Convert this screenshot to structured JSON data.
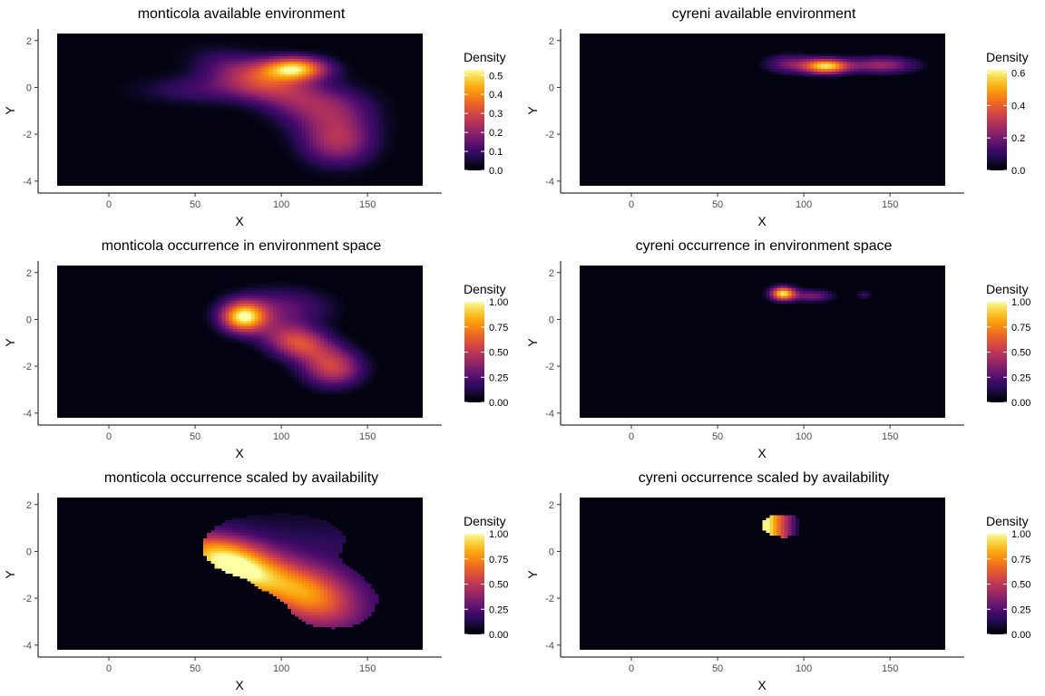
{
  "chart_data": [
    {
      "type": "heatmap",
      "title": "monticola available environment",
      "xlabel": "X",
      "ylabel": "Y",
      "xlim": [
        -30,
        182
      ],
      "ylim": [
        -4.2,
        2.3
      ],
      "xticks": [
        0,
        50,
        100,
        150
      ],
      "yticks": [
        2,
        0,
        -2,
        -4
      ],
      "legend": {
        "title": "Density",
        "ticks": [
          "0.0",
          "0.1",
          "0.2",
          "0.3",
          "0.4",
          "0.5"
        ],
        "max": 0.53,
        "tick_values": [
          0,
          0.1,
          0.2,
          0.3,
          0.4,
          0.5
        ]
      },
      "peak": [
        108,
        0.8
      ],
      "peak_value": 0.53,
      "palette": "inferno"
    },
    {
      "type": "heatmap",
      "title": "cyreni available environment",
      "xlabel": "X",
      "ylabel": "Y",
      "xlim": [
        -30,
        182
      ],
      "ylim": [
        -4.2,
        2.3
      ],
      "xticks": [
        0,
        50,
        100,
        150
      ],
      "yticks": [
        2,
        0,
        -2,
        -4
      ],
      "legend": {
        "title": "Density",
        "ticks": [
          "0.0",
          "0.2",
          "0.4",
          "0.6"
        ],
        "max": 0.62,
        "tick_values": [
          0,
          0.2,
          0.4,
          0.6
        ]
      },
      "peak": [
        113,
        0.9
      ],
      "peak_value": 0.62,
      "palette": "inferno"
    },
    {
      "type": "heatmap",
      "title": "monticola occurrence in environment space",
      "xlabel": "X",
      "ylabel": "Y",
      "xlim": [
        -30,
        182
      ],
      "ylim": [
        -4.2,
        2.3
      ],
      "xticks": [
        0,
        50,
        100,
        150
      ],
      "yticks": [
        2,
        0,
        -2,
        -4
      ],
      "legend": {
        "title": "Density",
        "ticks": [
          "0.00",
          "0.25",
          "0.50",
          "0.75",
          "1.00"
        ],
        "max": 1.0,
        "tick_values": [
          0,
          0.25,
          0.5,
          0.75,
          1.0
        ]
      },
      "peak": [
        78,
        0.1
      ],
      "peak_value": 1.0,
      "palette": "inferno"
    },
    {
      "type": "heatmap",
      "title": "cyreni occurrence in environment space",
      "xlabel": "X",
      "ylabel": "Y",
      "xlim": [
        -30,
        182
      ],
      "ylim": [
        -4.2,
        2.3
      ],
      "xticks": [
        0,
        50,
        100,
        150
      ],
      "yticks": [
        2,
        0,
        -2,
        -4
      ],
      "legend": {
        "title": "Density",
        "ticks": [
          "0.00",
          "0.25",
          "0.50",
          "0.75",
          "1.00"
        ],
        "max": 1.0,
        "tick_values": [
          0,
          0.25,
          0.5,
          0.75,
          1.0
        ]
      },
      "peak": [
        88,
        1.1
      ],
      "peak_value": 1.0,
      "palette": "inferno"
    },
    {
      "type": "heatmap",
      "title": "monticola occurrence scaled by availability",
      "xlabel": "X",
      "ylabel": "Y",
      "xlim": [
        -30,
        182
      ],
      "ylim": [
        -4.2,
        2.3
      ],
      "xticks": [
        0,
        50,
        100,
        150
      ],
      "yticks": [
        2,
        0,
        -2,
        -4
      ],
      "legend": {
        "title": "Density",
        "ticks": [
          "0.00",
          "0.25",
          "0.50",
          "0.75",
          "1.00"
        ],
        "max": 1.0,
        "tick_values": [
          0,
          0.25,
          0.5,
          0.75,
          1.0
        ]
      },
      "peak": [
        78,
        -0.8
      ],
      "peak_value": 1.0,
      "palette": "inferno"
    },
    {
      "type": "heatmap",
      "title": "cyreni occurrence scaled by availability",
      "xlabel": "X",
      "ylabel": "Y",
      "xlim": [
        -30,
        182
      ],
      "ylim": [
        -4.2,
        2.3
      ],
      "xticks": [
        0,
        50,
        100,
        150
      ],
      "yticks": [
        2,
        0,
        -2,
        -4
      ],
      "legend": {
        "title": "Density",
        "ticks": [
          "0.00",
          "0.25",
          "0.50",
          "0.75",
          "1.00"
        ],
        "max": 1.0,
        "tick_values": [
          0,
          0.25,
          0.5,
          0.75,
          1.0
        ]
      },
      "peak": [
        82,
        1.2
      ],
      "peak_value": 1.0,
      "palette": "inferno"
    }
  ]
}
